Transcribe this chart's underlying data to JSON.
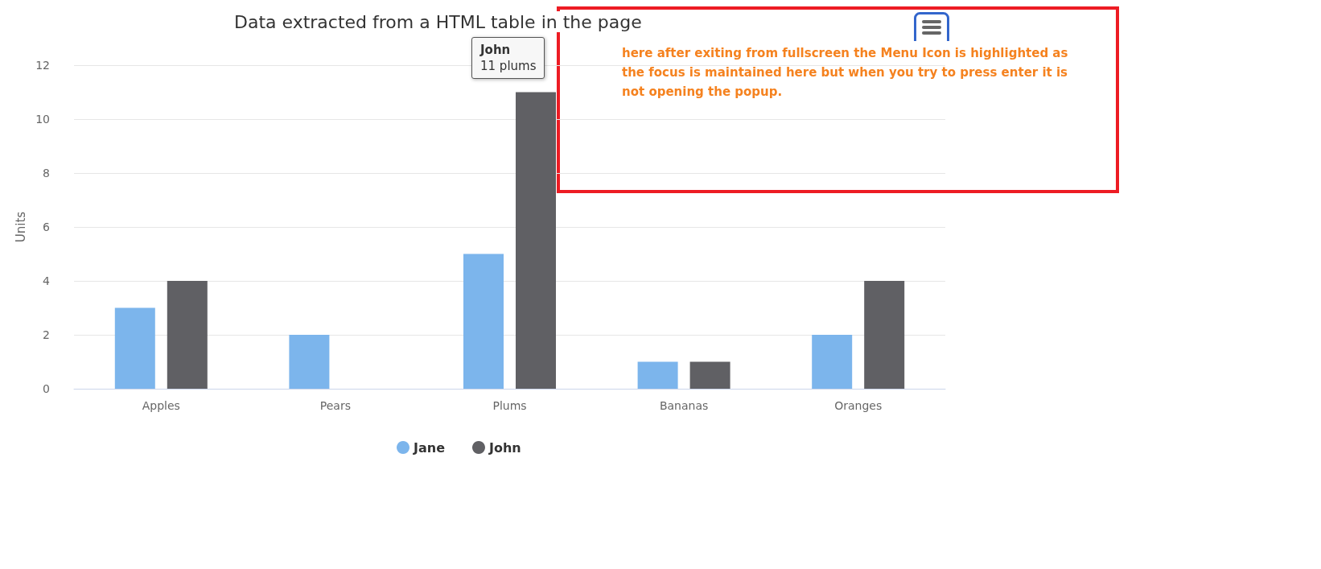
{
  "chart_data": {
    "type": "bar",
    "title": "Data extracted from a HTML table in the page",
    "ylabel": "Units",
    "categories": [
      "Apples",
      "Pears",
      "Plums",
      "Bananas",
      "Oranges"
    ],
    "series": [
      {
        "name": "Jane",
        "color": "#7cb5ec",
        "values": [
          3,
          2,
          5,
          1,
          2
        ]
      },
      {
        "name": "John",
        "color": "#606064",
        "values": [
          4,
          0,
          11,
          1,
          4
        ]
      }
    ],
    "ylim": [
      0,
      12
    ],
    "yticks": [
      0,
      2,
      4,
      6,
      8,
      10,
      12
    ],
    "grid": "y",
    "legend": "bottom",
    "annotations": [
      "John\n11 plums",
      "here after exiting from fullscreen the Menu Icon is highlighted as the focus is maintained here but when you try to press enter it is not opening the popup."
    ]
  }
}
